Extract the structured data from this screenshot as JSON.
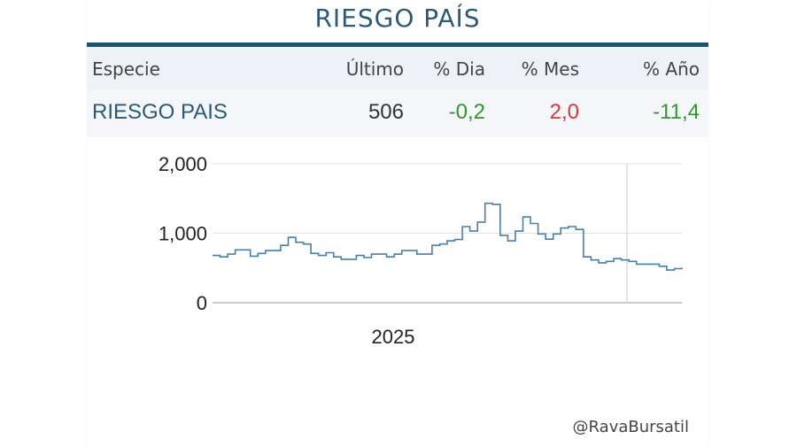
{
  "title": "RIESGO PAÍS",
  "table": {
    "headers": [
      "Especie",
      "Último",
      "% Dia",
      "% Mes",
      "% Año"
    ],
    "row": {
      "especie": "RIESGO PAIS",
      "ultimo": "506",
      "dia": "-0,2",
      "mes": "2,0",
      "anio": "-11,4"
    }
  },
  "colors": {
    "title": "#2b5a78",
    "positive": "#d23b3b",
    "negative": "#2e9a2e",
    "line": "#4a7fa8",
    "name": "#2b5a78"
  },
  "chart_data": {
    "type": "line",
    "title": "",
    "xlabel": "",
    "ylabel": "",
    "ylim": [
      0,
      2000
    ],
    "yticks": [
      "2,000",
      "1,000",
      "0"
    ],
    "ytick_values": [
      2000,
      1000,
      0
    ],
    "xtick_labels": [
      "2025"
    ],
    "grid": true,
    "series": [
      {
        "values": [
          680,
          660,
          700,
          760,
          760,
          670,
          710,
          750,
          750,
          825,
          940,
          870,
          845,
          710,
          680,
          720,
          660,
          625,
          625,
          680,
          650,
          700,
          700,
          660,
          700,
          750,
          750,
          700,
          700,
          825,
          845,
          890,
          910,
          1095,
          1030,
          1160,
          1430,
          1415,
          970,
          890,
          1030,
          1235,
          1140,
          990,
          915,
          990,
          1075,
          1095,
          1055,
          660,
          615,
          575,
          595,
          635,
          615,
          595,
          555,
          555,
          555,
          525,
          470,
          490,
          506
        ]
      }
    ]
  },
  "credit": "@RavaBursatil"
}
